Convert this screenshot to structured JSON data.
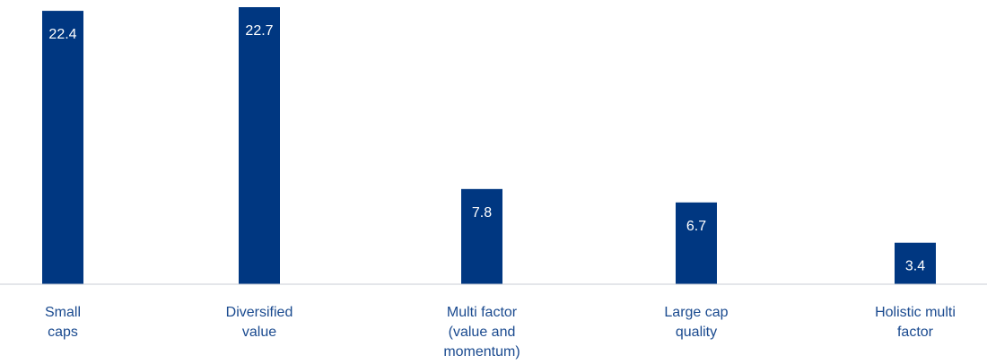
{
  "chart_data": {
    "type": "bar",
    "categories": [
      [
        "Small",
        "caps"
      ],
      [
        "Diversified",
        "value"
      ],
      [
        "Multi factor",
        "(value and",
        "momentum)"
      ],
      [
        "Large cap",
        "quality"
      ],
      [
        "Holistic multi",
        "factor"
      ]
    ],
    "values": [
      22.4,
      22.7,
      7.8,
      6.7,
      3.4
    ],
    "value_labels": [
      "22.4",
      "22.7",
      "7.8",
      "6.7",
      "3.4"
    ],
    "title": "",
    "xlabel": "",
    "ylabel": "",
    "ylim": [
      0,
      22.7
    ],
    "grid": false,
    "legend": "none",
    "colors": {
      "bar": "#003781",
      "bar_label": "#ffffff",
      "axis": "#c9ced6",
      "category_label": "#1a4a8f"
    }
  }
}
